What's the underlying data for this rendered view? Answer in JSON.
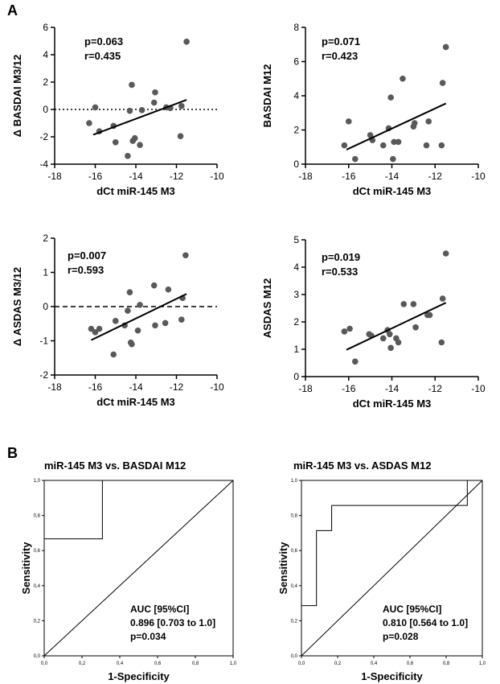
{
  "panel_labels": {
    "a": "A",
    "b": "B"
  },
  "colors": {
    "point": "#595959",
    "axis": "#000000",
    "line": "#000000"
  },
  "chart_data": [
    {
      "id": "s1",
      "type": "scatter",
      "ylabel": "Δ BASDAI M3/12",
      "xlabel": "dCt miR-145 M3",
      "xlim": [
        -18,
        -10
      ],
      "ylim": [
        -4,
        6
      ],
      "xticks": [
        -18,
        -16,
        -14,
        -12,
        -10
      ],
      "yticks": [
        -4,
        -2,
        0,
        2,
        4,
        6
      ],
      "xtick_labels": [
        "-18",
        "-16",
        "-14",
        "-12",
        "-10"
      ],
      "ytick_labels": [
        "-4",
        "-2",
        "0",
        "2",
        "4",
        "6"
      ],
      "annotations": [
        "p=0.063",
        "r=0.435"
      ],
      "reference_line": {
        "y": 0,
        "style": "dotted"
      },
      "fit_line": {
        "x": [
          -16.1,
          -11.5
        ],
        "y": [
          -1.85,
          0.7
        ]
      },
      "points": [
        [
          -16.3,
          -1.0
        ],
        [
          -16.0,
          0.15
        ],
        [
          -15.8,
          -1.6
        ],
        [
          -15.1,
          -1.2
        ],
        [
          -15.0,
          -2.4
        ],
        [
          -14.4,
          -3.4
        ],
        [
          -14.3,
          -0.1
        ],
        [
          -14.2,
          1.8
        ],
        [
          -14.15,
          -2.3
        ],
        [
          -14.05,
          -2.1
        ],
        [
          -13.8,
          -2.6
        ],
        [
          -13.7,
          -0.05
        ],
        [
          -13.1,
          0.5
        ],
        [
          -13.05,
          1.25
        ],
        [
          -12.5,
          0.15
        ],
        [
          -12.3,
          0.1
        ],
        [
          -11.8,
          -1.95
        ],
        [
          -11.75,
          0.25
        ],
        [
          -11.5,
          4.95
        ]
      ]
    },
    {
      "id": "s2",
      "type": "scatter",
      "ylabel": "BASDAI M12",
      "xlabel": "dCt miR-145 M3",
      "xlim": [
        -18,
        -10
      ],
      "ylim": [
        0,
        8
      ],
      "xticks": [
        -18,
        -16,
        -14,
        -12,
        -10
      ],
      "yticks": [
        0,
        2,
        4,
        6,
        8
      ],
      "xtick_labels": [
        "-18",
        "-16",
        "-14",
        "-12",
        "-10"
      ],
      "ytick_labels": [
        "0",
        "2",
        "4",
        "6",
        "8"
      ],
      "annotations": [
        "p=0.071",
        "r=0.423"
      ],
      "fit_line": {
        "x": [
          -16.1,
          -11.5
        ],
        "y": [
          0.85,
          3.55
        ]
      },
      "points": [
        [
          -16.2,
          1.1
        ],
        [
          -16.0,
          2.5
        ],
        [
          -15.7,
          0.3
        ],
        [
          -15.0,
          1.7
        ],
        [
          -14.9,
          1.4
        ],
        [
          -14.4,
          1.1
        ],
        [
          -14.15,
          2.1
        ],
        [
          -14.05,
          3.9
        ],
        [
          -13.9,
          1.3
        ],
        [
          -13.95,
          0.3
        ],
        [
          -13.7,
          1.3
        ],
        [
          -13.5,
          5.0
        ],
        [
          -13.0,
          2.2
        ],
        [
          -12.95,
          2.4
        ],
        [
          -12.4,
          1.1
        ],
        [
          -12.3,
          2.5
        ],
        [
          -11.7,
          1.1
        ],
        [
          -11.65,
          4.75
        ],
        [
          -11.5,
          6.85
        ]
      ]
    },
    {
      "id": "s3",
      "type": "scatter",
      "ylabel": "Δ ASDAS M3/12",
      "xlabel": "dCt miR-145 M3",
      "xlim": [
        -18,
        -10
      ],
      "ylim": [
        -2,
        2
      ],
      "xticks": [
        -18,
        -16,
        -14,
        -12,
        -10
      ],
      "yticks": [
        -2,
        -1,
        0,
        1,
        2
      ],
      "xtick_labels": [
        "-18",
        "-16",
        "-14",
        "-12",
        "-10"
      ],
      "ytick_labels": [
        "-2",
        "-1",
        "0",
        "1",
        "2"
      ],
      "annotations": [
        "p=0.007",
        "r=0.593"
      ],
      "reference_line": {
        "y": 0,
        "style": "dashed"
      },
      "fit_line": {
        "x": [
          -16.2,
          -11.5
        ],
        "y": [
          -0.98,
          0.37
        ]
      },
      "points": [
        [
          -16.2,
          -0.65
        ],
        [
          -16.0,
          -0.75
        ],
        [
          -15.8,
          -0.65
        ],
        [
          -15.1,
          -1.4
        ],
        [
          -15.0,
          -0.42
        ],
        [
          -14.55,
          -0.55
        ],
        [
          -14.4,
          -0.12
        ],
        [
          -14.3,
          0.42
        ],
        [
          -14.25,
          -1.05
        ],
        [
          -14.2,
          -1.1
        ],
        [
          -13.9,
          -0.7
        ],
        [
          -13.8,
          0.05
        ],
        [
          -13.1,
          0.62
        ],
        [
          -13.05,
          -0.55
        ],
        [
          -12.55,
          -0.48
        ],
        [
          -12.4,
          0.5
        ],
        [
          -11.75,
          -0.38
        ],
        [
          -11.7,
          0.25
        ],
        [
          -11.55,
          1.5
        ]
      ]
    },
    {
      "id": "s4",
      "type": "scatter",
      "ylabel": "ASDAS M12",
      "xlabel": "dCt miR-145 M3",
      "xlim": [
        -18,
        -10
      ],
      "ylim": [
        0,
        5
      ],
      "xticks": [
        -18,
        -16,
        -14,
        -12,
        -10
      ],
      "yticks": [
        0,
        1,
        2,
        3,
        4,
        5
      ],
      "xtick_labels": [
        "-18",
        "-16",
        "-14",
        "-12",
        "-10"
      ],
      "ytick_labels": [
        "0",
        "1",
        "2",
        "3",
        "4",
        "5"
      ],
      "annotations": [
        "p=0.019",
        "r=0.533"
      ],
      "fit_line": {
        "x": [
          -16.1,
          -11.5
        ],
        "y": [
          0.98,
          2.7
        ]
      },
      "points": [
        [
          -16.2,
          1.65
        ],
        [
          -15.95,
          1.75
        ],
        [
          -15.7,
          0.55
        ],
        [
          -15.05,
          1.55
        ],
        [
          -14.95,
          1.5
        ],
        [
          -14.4,
          1.4
        ],
        [
          -14.2,
          1.7
        ],
        [
          -14.1,
          1.55
        ],
        [
          -14.05,
          1.05
        ],
        [
          -13.8,
          1.4
        ],
        [
          -13.7,
          1.25
        ],
        [
          -13.45,
          2.65
        ],
        [
          -13.0,
          2.65
        ],
        [
          -12.9,
          1.8
        ],
        [
          -12.35,
          2.25
        ],
        [
          -12.25,
          2.25
        ],
        [
          -11.7,
          1.25
        ],
        [
          -11.65,
          2.85
        ],
        [
          -11.5,
          4.5
        ]
      ]
    },
    {
      "id": "r1",
      "type": "line",
      "title": "miR-145 M3 vs. BASDAI M12",
      "xlabel": "1-Specificity",
      "ylabel": "Sensitivity",
      "xlim": [
        0,
        1
      ],
      "ylim": [
        0,
        1
      ],
      "ticks": [
        0,
        0.2,
        0.4,
        0.6,
        0.8,
        1.0
      ],
      "tick_labels": [
        "0,0",
        "0,2",
        "0,4",
        "0,6",
        "0,8",
        "1,0"
      ],
      "annotations": [
        "AUC [95%CI]",
        "0.896 [0.703 to 1.0]",
        "p=0.034"
      ],
      "roc": [
        [
          0,
          0
        ],
        [
          0,
          0.667
        ],
        [
          0.308,
          0.667
        ],
        [
          0.308,
          1.0
        ],
        [
          1.0,
          1.0
        ]
      ],
      "diagonal": [
        [
          0,
          0
        ],
        [
          1,
          1
        ]
      ]
    },
    {
      "id": "r2",
      "type": "line",
      "title": "miR-145 M3 vs. ASDAS M12",
      "xlabel": "1-Specificity",
      "ylabel": "Sensitivity",
      "xlim": [
        0,
        1
      ],
      "ylim": [
        0,
        1
      ],
      "ticks": [
        0,
        0.2,
        0.4,
        0.6,
        0.8,
        1.0
      ],
      "tick_labels": [
        "0,0",
        "0,2",
        "0,4",
        "0,6",
        "0,8",
        "1,0"
      ],
      "annotations": [
        "AUC [95%CI]",
        "0.810 [0.564 to 1.0]",
        "p=0.028"
      ],
      "roc": [
        [
          0,
          0
        ],
        [
          0,
          0.286
        ],
        [
          0.083,
          0.286
        ],
        [
          0.083,
          0.714
        ],
        [
          0.167,
          0.714
        ],
        [
          0.167,
          0.857
        ],
        [
          0.917,
          0.857
        ],
        [
          0.917,
          1.0
        ],
        [
          1.0,
          1.0
        ]
      ],
      "diagonal": [
        [
          0,
          0
        ],
        [
          1,
          1
        ]
      ]
    }
  ]
}
